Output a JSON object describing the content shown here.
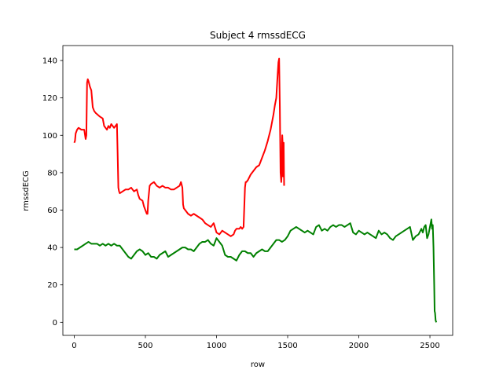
{
  "chart_data": {
    "type": "line",
    "title": "Subject 4 rmssdECG",
    "xlabel": "row",
    "ylabel": "rmssdECG",
    "xlim": [
      -80,
      2660
    ],
    "ylim": [
      -7,
      148
    ],
    "xticks": [
      0,
      500,
      1000,
      1500,
      2000,
      2500
    ],
    "yticks": [
      0,
      20,
      40,
      60,
      80,
      100,
      120,
      140
    ],
    "grid": false,
    "series": [
      {
        "name": "red",
        "color": "#ff0000",
        "x": [
          0,
          5,
          10,
          20,
          30,
          50,
          70,
          80,
          85,
          90,
          95,
          100,
          110,
          120,
          130,
          140,
          150,
          180,
          200,
          210,
          220,
          230,
          240,
          250,
          260,
          270,
          280,
          290,
          300,
          305,
          310,
          315,
          320,
          340,
          360,
          380,
          400,
          420,
          440,
          450,
          460,
          480,
          490,
          500,
          510,
          515,
          520,
          525,
          530,
          540,
          560,
          580,
          600,
          620,
          640,
          660,
          680,
          700,
          720,
          740,
          750,
          760,
          765,
          770,
          780,
          800,
          820,
          840,
          860,
          880,
          900,
          920,
          940,
          960,
          980,
          1000,
          1020,
          1040,
          1060,
          1080,
          1100,
          1120,
          1130,
          1140,
          1150,
          1160,
          1170,
          1180,
          1190,
          1200,
          1205,
          1210,
          1220,
          1240,
          1260,
          1280,
          1300,
          1320,
          1340,
          1360,
          1380,
          1400,
          1410,
          1420,
          1430,
          1435,
          1440,
          1445,
          1450,
          1455,
          1458,
          1460,
          1462,
          1465,
          1468,
          1470,
          1472,
          1475
        ],
        "y": [
          96,
          97,
          101,
          103,
          104,
          103,
          103,
          98,
          100,
          128,
          130,
          129,
          126,
          124,
          115,
          113,
          112,
          110,
          109,
          105,
          104,
          103,
          105,
          104,
          106,
          105,
          104,
          105,
          106,
          90,
          72,
          70,
          69,
          70,
          71,
          71,
          72,
          70,
          71,
          68,
          66,
          65,
          62,
          60,
          58,
          58,
          65,
          69,
          73,
          74,
          75,
          73,
          72,
          73,
          72,
          72,
          71,
          71,
          72,
          73,
          75,
          72,
          63,
          61,
          60,
          58,
          57,
          58,
          57,
          56,
          55,
          53,
          52,
          51,
          53,
          48,
          47,
          49,
          48,
          47,
          46,
          47,
          49,
          50,
          50,
          50,
          51,
          50,
          51,
          72,
          75,
          75,
          76,
          79,
          81,
          83,
          84,
          88,
          92,
          97,
          103,
          111,
          116,
          120,
          133,
          139,
          141,
          115,
          80,
          75,
          79,
          96,
          100,
          95,
          78,
          83,
          96,
          73
        ]
      },
      {
        "name": "green",
        "color": "#008000",
        "x": [
          0,
          20,
          40,
          60,
          80,
          100,
          120,
          140,
          160,
          180,
          200,
          220,
          240,
          260,
          280,
          300,
          320,
          340,
          360,
          380,
          400,
          420,
          440,
          460,
          480,
          500,
          520,
          540,
          560,
          580,
          600,
          620,
          640,
          660,
          680,
          700,
          720,
          740,
          760,
          780,
          800,
          820,
          840,
          860,
          880,
          900,
          920,
          940,
          960,
          980,
          1000,
          1020,
          1040,
          1060,
          1080,
          1100,
          1120,
          1140,
          1160,
          1180,
          1200,
          1220,
          1240,
          1260,
          1280,
          1300,
          1320,
          1340,
          1360,
          1380,
          1400,
          1420,
          1440,
          1460,
          1480,
          1500,
          1520,
          1540,
          1560,
          1580,
          1600,
          1620,
          1640,
          1660,
          1680,
          1700,
          1720,
          1740,
          1760,
          1780,
          1800,
          1820,
          1840,
          1860,
          1880,
          1900,
          1920,
          1940,
          1960,
          1980,
          2000,
          2020,
          2040,
          2060,
          2080,
          2100,
          2120,
          2140,
          2160,
          2180,
          2200,
          2220,
          2240,
          2260,
          2280,
          2300,
          2320,
          2340,
          2360,
          2380,
          2400,
          2420,
          2440,
          2450,
          2460,
          2470,
          2480,
          2490,
          2500,
          2510,
          2515,
          2520,
          2525,
          2530,
          2533,
          2536,
          2540,
          2545
        ],
        "y": [
          39,
          39,
          40,
          41,
          42,
          43,
          42,
          42,
          42,
          41,
          42,
          41,
          42,
          41,
          42,
          41,
          41,
          39,
          37,
          35,
          34,
          36,
          38,
          39,
          38,
          36,
          37,
          35,
          35,
          34,
          36,
          37,
          38,
          35,
          36,
          37,
          38,
          39,
          40,
          40,
          39,
          39,
          38,
          40,
          42,
          43,
          43,
          44,
          42,
          41,
          45,
          43,
          41,
          36,
          35,
          35,
          34,
          33,
          36,
          38,
          38,
          37,
          37,
          35,
          37,
          38,
          39,
          38,
          38,
          40,
          42,
          44,
          44,
          43,
          44,
          46,
          49,
          50,
          51,
          50,
          49,
          48,
          49,
          48,
          47,
          51,
          52,
          49,
          50,
          49,
          51,
          52,
          51,
          52,
          52,
          51,
          52,
          53,
          48,
          47,
          49,
          48,
          47,
          48,
          47,
          46,
          45,
          49,
          47,
          48,
          47,
          45,
          44,
          46,
          47,
          48,
          49,
          50,
          51,
          44,
          46,
          47,
          50,
          48,
          51,
          52,
          45,
          47,
          51,
          55,
          50,
          52,
          40,
          20,
          6,
          5,
          1,
          0
        ]
      }
    ]
  }
}
